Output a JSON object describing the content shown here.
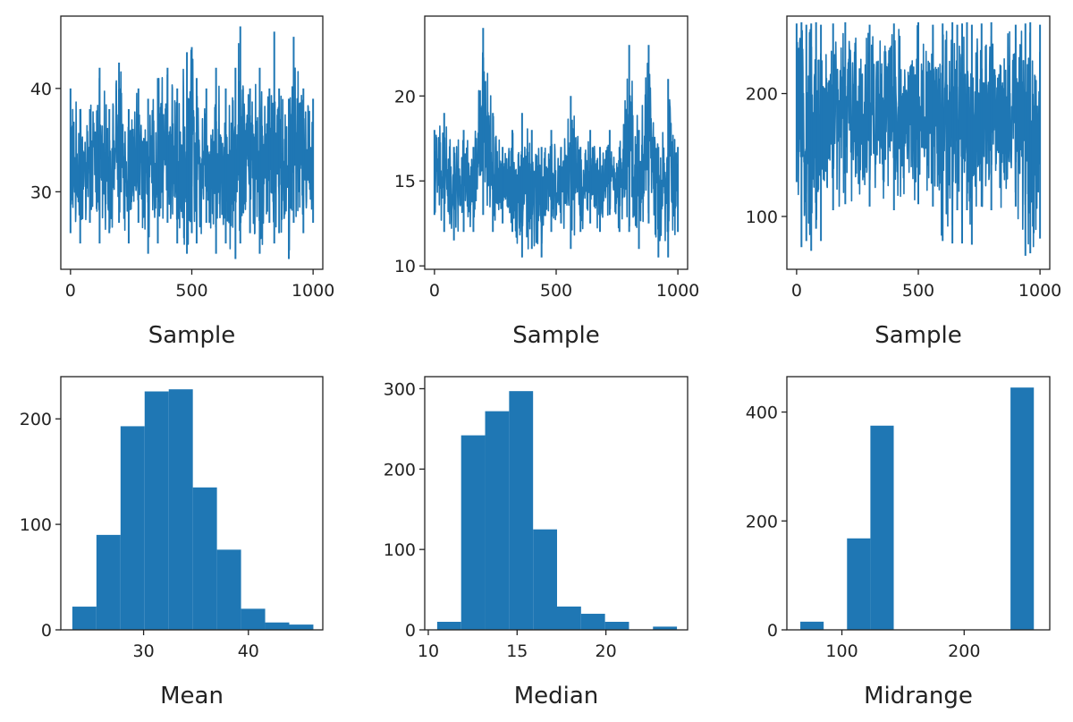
{
  "chart_data": [
    {
      "type": "line",
      "title": "",
      "xlabel": "Sample",
      "ylabel": "",
      "xlim": [
        -40,
        1040
      ],
      "ylim": [
        22.5,
        47
      ],
      "xticks": [
        0,
        500,
        1000
      ],
      "yticks": [
        30,
        40
      ],
      "color": "#1f77b4",
      "series": [
        {
          "x": [
            0,
            40,
            80,
            120,
            160,
            200,
            240,
            280,
            320,
            360,
            400,
            440,
            480,
            500,
            520,
            560,
            600,
            640,
            680,
            700,
            740,
            780,
            820,
            840,
            860,
            900,
            920,
            960,
            1000
          ],
          "min": [
            26,
            25,
            27,
            25,
            26,
            27,
            25,
            27,
            24,
            25,
            27,
            25,
            24,
            26,
            25,
            27,
            24,
            25,
            23.5,
            25,
            26,
            24,
            27,
            25,
            26,
            23.5,
            27,
            26,
            27
          ],
          "max": [
            40,
            38,
            38,
            42,
            38,
            42.5,
            38,
            40,
            39,
            41,
            42,
            40,
            43.5,
            44,
            41,
            40,
            42,
            40,
            42,
            46,
            40,
            42,
            40,
            45.5,
            40,
            39,
            45,
            40,
            39
          ]
        }
      ]
    },
    {
      "type": "line",
      "title": "",
      "xlabel": "Sample",
      "ylabel": "",
      "xlim": [
        -40,
        1040
      ],
      "ylim": [
        9.8,
        24.7
      ],
      "xticks": [
        0,
        500,
        1000
      ],
      "yticks": [
        10,
        15,
        20
      ],
      "color": "#1f77b4",
      "series": [
        {
          "x": [
            0,
            40,
            80,
            120,
            160,
            200,
            240,
            280,
            320,
            360,
            400,
            440,
            480,
            520,
            560,
            600,
            640,
            680,
            720,
            760,
            800,
            840,
            880,
            920,
            960,
            1000
          ],
          "min": [
            13,
            12,
            11.5,
            12,
            12,
            13,
            12,
            12.5,
            12,
            10.5,
            11,
            10.5,
            12,
            12.5,
            11,
            12,
            12.5,
            12,
            13,
            12,
            12,
            11,
            12.5,
            10.5,
            10.5,
            12
          ],
          "max": [
            18,
            19,
            17,
            18,
            17,
            24,
            19,
            17,
            18,
            19,
            18,
            17,
            18,
            17,
            20,
            17,
            18,
            17,
            18,
            17,
            23,
            18,
            23,
            17,
            21,
            17
          ]
        }
      ]
    },
    {
      "type": "line",
      "title": "",
      "xlabel": "Sample",
      "ylabel": "",
      "xlim": [
        -40,
        1040
      ],
      "ylim": [
        57,
        263
      ],
      "xticks": [
        0,
        500,
        1000
      ],
      "yticks": [
        100,
        200
      ],
      "color": "#1f77b4",
      "series": [
        {
          "x": [
            0,
            20,
            40,
            60,
            80,
            100,
            150,
            200,
            300,
            400,
            500,
            560,
            600,
            640,
            660,
            680,
            700,
            720,
            760,
            800,
            900,
            940,
            960,
            1000
          ],
          "min": [
            128,
            75,
            80,
            72,
            90,
            80,
            105,
            110,
            108,
            105,
            110,
            108,
            80,
            78,
            105,
            78,
            105,
            77,
            108,
            105,
            108,
            68,
            70,
            82
          ],
          "max": [
            257,
            258,
            256,
            257,
            258,
            256,
            257,
            258,
            256,
            257,
            258,
            256,
            257,
            258,
            256,
            257,
            258,
            256,
            257,
            258,
            256,
            257,
            258,
            256
          ]
        }
      ]
    },
    {
      "type": "bar",
      "title": "",
      "xlabel": "Mean",
      "ylabel": "",
      "xlim": [
        22.1,
        47.1
      ],
      "ylim": [
        0,
        240
      ],
      "xticks": [
        30,
        40
      ],
      "yticks": [
        0,
        100,
        200
      ],
      "color": "#1f77b4",
      "bin_edges": [
        23.2,
        25.5,
        27.8,
        30.1,
        32.4,
        34.7,
        37.0,
        39.3,
        41.6,
        43.9,
        46.2
      ],
      "values": [
        22,
        90,
        193,
        226,
        228,
        135,
        76,
        20,
        7,
        5
      ]
    },
    {
      "type": "bar",
      "title": "",
      "xlabel": "Median",
      "ylabel": "",
      "xlim": [
        9.8,
        24.6
      ],
      "ylim": [
        0,
        315
      ],
      "xticks": [
        10,
        15,
        20
      ],
      "yticks": [
        0,
        100,
        200,
        300
      ],
      "color": "#1f77b4",
      "bin_edges": [
        10.5,
        11.85,
        13.2,
        14.55,
        15.9,
        17.25,
        18.6,
        19.95,
        21.3,
        22.65,
        24.0
      ],
      "values": [
        10,
        242,
        272,
        297,
        125,
        29,
        20,
        10,
        0,
        4
      ]
    },
    {
      "type": "bar",
      "title": "",
      "xlabel": "Midrange",
      "ylabel": "",
      "xlim": [
        55,
        270
      ],
      "ylim": [
        0,
        465
      ],
      "xticks": [
        100,
        200
      ],
      "yticks": [
        0,
        200,
        400
      ],
      "color": "#1f77b4",
      "bin_edges": [
        66,
        85.1,
        104.2,
        123.3,
        142.4,
        161.5,
        180.6,
        199.7,
        218.8,
        237.9,
        257
      ],
      "values": [
        15,
        0,
        168,
        375,
        0,
        0,
        0,
        0,
        0,
        445
      ]
    }
  ]
}
